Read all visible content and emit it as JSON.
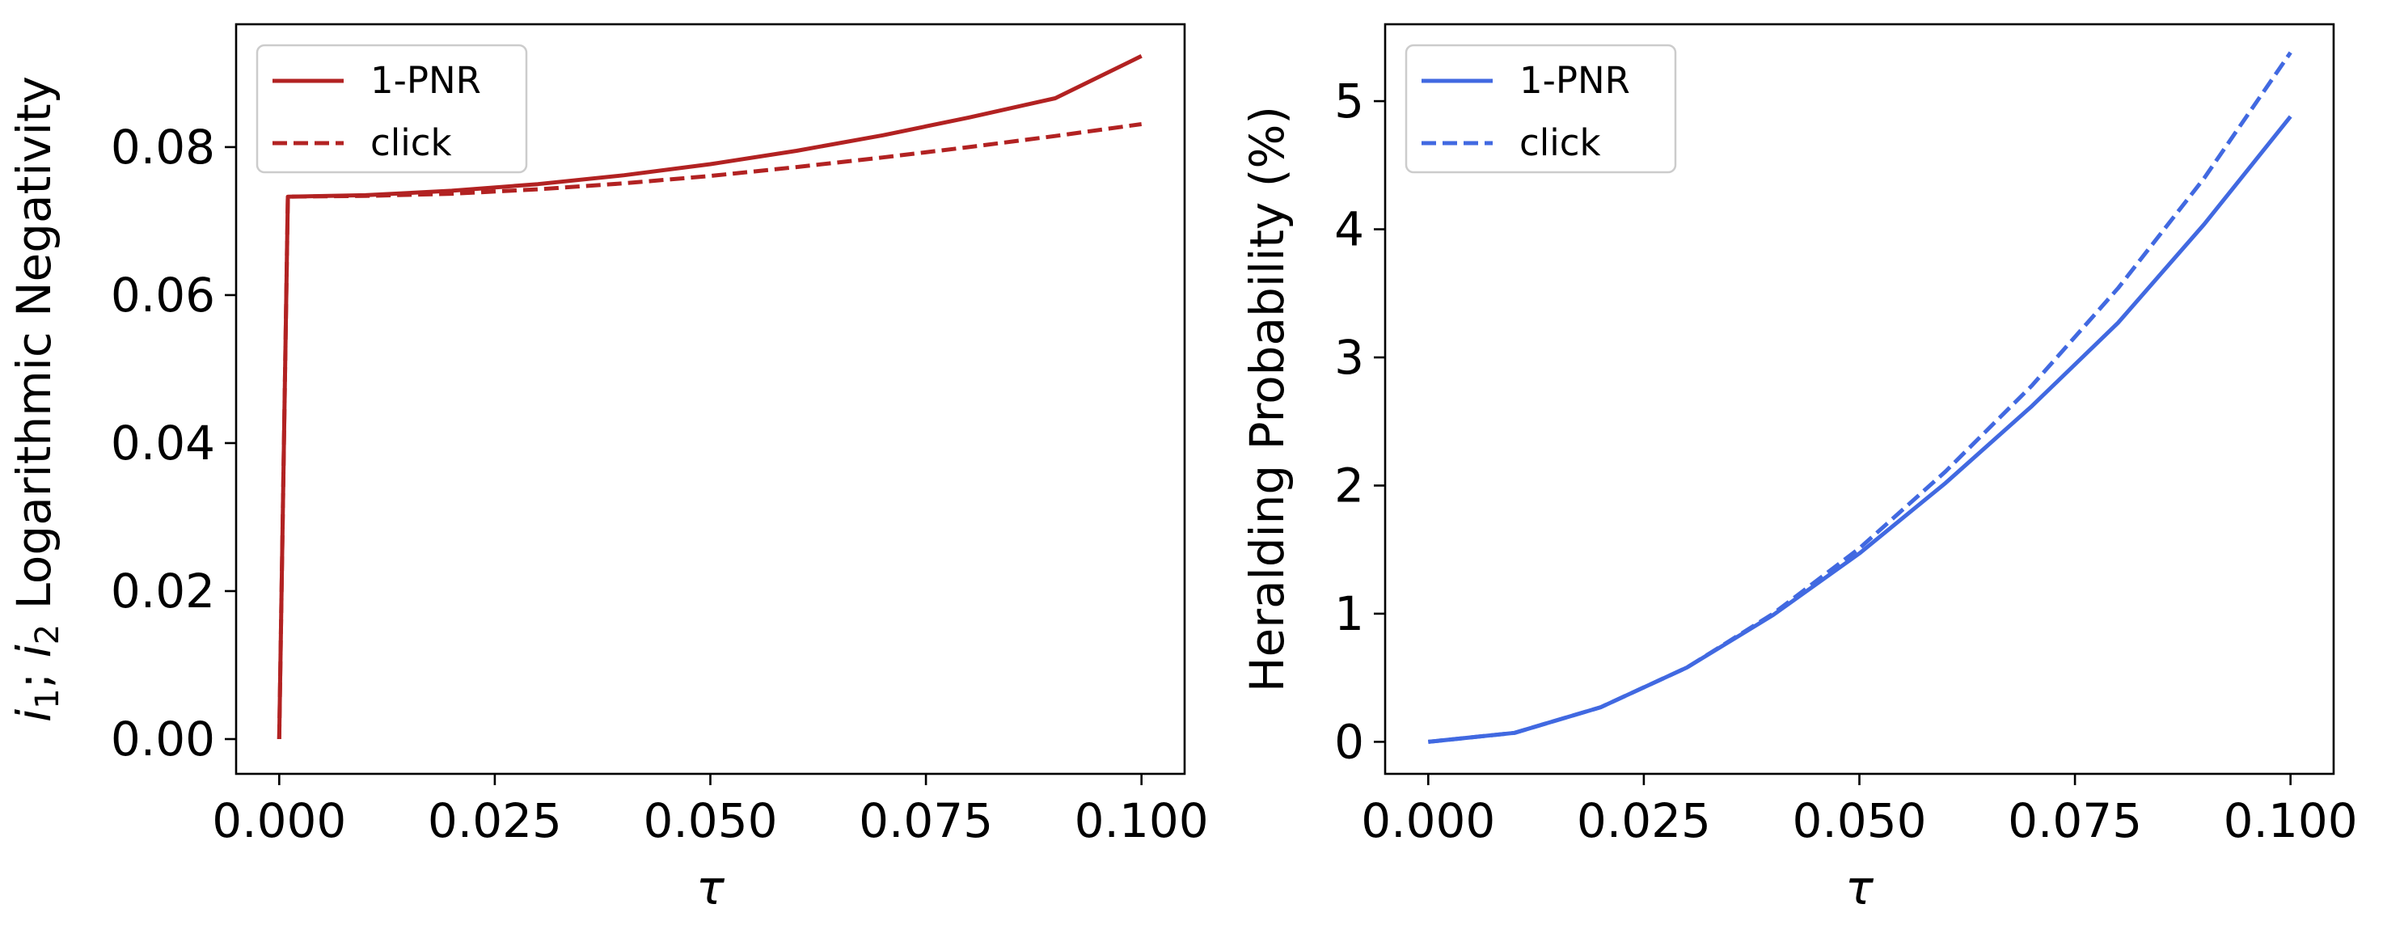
{
  "chart_data": [
    {
      "type": "line",
      "title": "",
      "xlabel": "τ",
      "ylabel": "i₁; i₂ Logarithmic Negativity",
      "ylabel_parts": {
        "var1": "i",
        "sub1": "1",
        "sep": "; ",
        "var2": "i",
        "sub2": "2",
        "text": " Logarithmic Negativity"
      },
      "xlim": [
        -0.005,
        0.105
      ],
      "ylim": [
        -0.0047,
        0.0966
      ],
      "xticks": [
        0.0,
        0.025,
        0.05,
        0.075,
        0.1
      ],
      "xtick_labels": [
        "0.000",
        "0.025",
        "0.050",
        "0.075",
        "0.100"
      ],
      "yticks": [
        0.0,
        0.02,
        0.04,
        0.06,
        0.08
      ],
      "ytick_labels": [
        "0.00",
        "0.02",
        "0.04",
        "0.06",
        "0.08"
      ],
      "grid": false,
      "legend": "top-left",
      "color": "#b22222",
      "series": [
        {
          "name": "1-PNR",
          "style": "solid",
          "x": [
            0.0,
            0.001,
            0.01,
            0.02,
            0.03,
            0.04,
            0.05,
            0.06,
            0.07,
            0.08,
            0.09,
            0.1
          ],
          "y": [
            0.0,
            0.0733,
            0.0735,
            0.0741,
            0.075,
            0.0762,
            0.0777,
            0.0795,
            0.0816,
            0.084,
            0.0866,
            0.0923
          ]
        },
        {
          "name": "click",
          "style": "dashed",
          "x": [
            0.0,
            0.001,
            0.01,
            0.02,
            0.03,
            0.04,
            0.05,
            0.06,
            0.07,
            0.08,
            0.09,
            0.1
          ],
          "y": [
            0.0,
            0.0733,
            0.0734,
            0.0737,
            0.0743,
            0.0751,
            0.0761,
            0.0773,
            0.0786,
            0.08,
            0.0815,
            0.0831
          ]
        }
      ]
    },
    {
      "type": "line",
      "title": "",
      "xlabel": "τ",
      "ylabel": "Heralding Probability (%)",
      "xlim": [
        -0.005,
        0.105
      ],
      "ylim": [
        -0.25,
        5.6
      ],
      "xticks": [
        0.0,
        0.025,
        0.05,
        0.075,
        0.1
      ],
      "xtick_labels": [
        "0.000",
        "0.025",
        "0.050",
        "0.075",
        "0.100"
      ],
      "yticks": [
        0,
        1,
        2,
        3,
        4,
        5
      ],
      "ytick_labels": [
        "0",
        "1",
        "2",
        "3",
        "4",
        "5"
      ],
      "grid": false,
      "legend": "top-left",
      "color": "#4169e1",
      "series": [
        {
          "name": "1-PNR",
          "style": "solid",
          "x": [
            0.0,
            0.01,
            0.02,
            0.03,
            0.04,
            0.05,
            0.06,
            0.07,
            0.08,
            0.09,
            0.1
          ],
          "y": [
            0.0,
            0.07,
            0.27,
            0.58,
            0.99,
            1.47,
            2.02,
            2.62,
            3.27,
            4.04,
            4.88
          ]
        },
        {
          "name": "click",
          "style": "dashed",
          "x": [
            0.0,
            0.01,
            0.02,
            0.03,
            0.04,
            0.05,
            0.06,
            0.07,
            0.08,
            0.09,
            0.1
          ],
          "y": [
            0.0,
            0.07,
            0.27,
            0.58,
            1.0,
            1.51,
            2.11,
            2.78,
            3.54,
            4.4,
            5.38
          ]
        }
      ]
    }
  ]
}
